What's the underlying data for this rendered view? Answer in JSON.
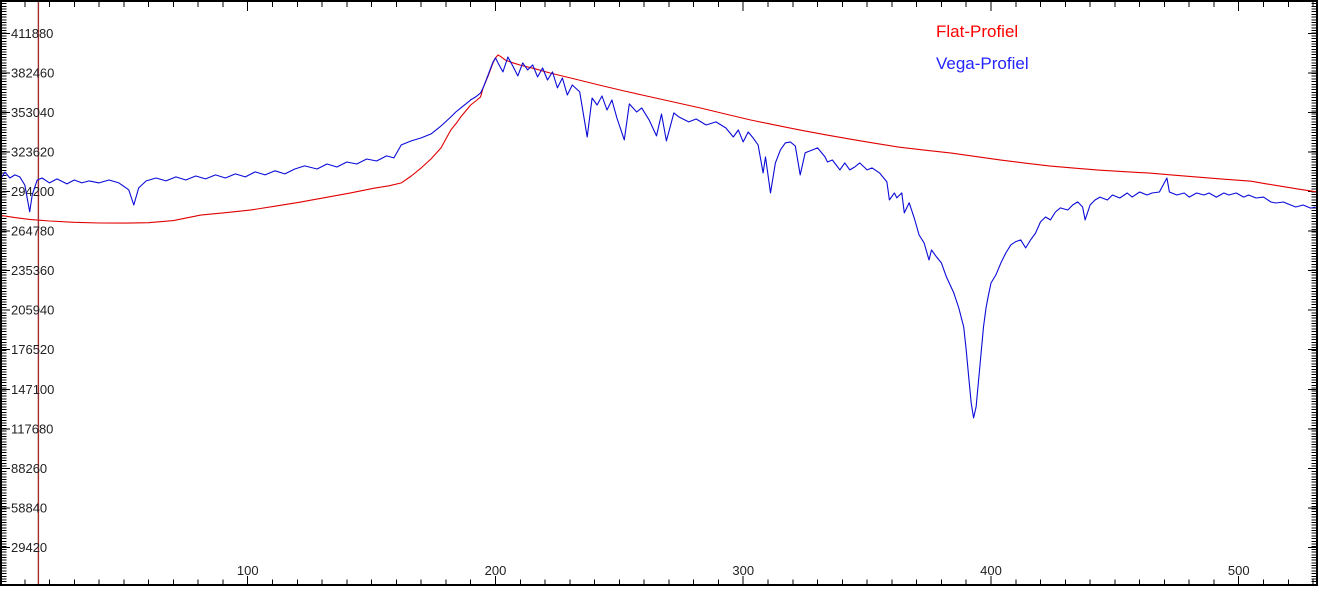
{
  "plot": {
    "background": "#ffffff",
    "border_color": "#000000",
    "tick_color": "#000000",
    "label_color": "#222222"
  },
  "legend": {
    "position": "top-right",
    "items": [
      {
        "label": "Flat-Profiel",
        "color": "#ff0000"
      },
      {
        "label": "Vega-Profiel",
        "color": "#2424ff"
      }
    ]
  },
  "cursor": {
    "x": 15.5,
    "color": "#a02c2c"
  },
  "chart_data": {
    "type": "line",
    "title": "",
    "xlabel": "",
    "ylabel": "",
    "grid": false,
    "legend_position": "top-right",
    "xlim": [
      0,
      532
    ],
    "ylim": [
      1500,
      436700
    ],
    "x_major_ticks": [
      100,
      200,
      300,
      400,
      500
    ],
    "x_minor_step": 10,
    "y_major_ticks": [
      29420,
      58840,
      88260,
      117680,
      147100,
      176520,
      205940,
      235360,
      264780,
      294200,
      323620,
      353040,
      382460,
      411880
    ],
    "y_minor_step": 2000,
    "series": [
      {
        "name": "Flat-Profiel",
        "color": "#e10000",
        "points": [
          [
            0,
            276500
          ],
          [
            6,
            274800
          ],
          [
            12,
            273500
          ],
          [
            20,
            272300
          ],
          [
            30,
            271300
          ],
          [
            40,
            270800
          ],
          [
            50,
            270700
          ],
          [
            60,
            271000
          ],
          [
            70,
            272600
          ],
          [
            81,
            276700
          ],
          [
            91,
            278500
          ],
          [
            101,
            280400
          ],
          [
            111,
            283300
          ],
          [
            121,
            286300
          ],
          [
            131,
            289600
          ],
          [
            141,
            293000
          ],
          [
            151,
            296700
          ],
          [
            157,
            298500
          ],
          [
            162,
            300600
          ],
          [
            166,
            305800
          ],
          [
            170,
            311800
          ],
          [
            174,
            318500
          ],
          [
            178,
            326700
          ],
          [
            182,
            340100
          ],
          [
            184,
            344500
          ],
          [
            186,
            349700
          ],
          [
            188,
            354200
          ],
          [
            190,
            358600
          ],
          [
            192,
            361600
          ],
          [
            194,
            364600
          ],
          [
            195,
            371300
          ],
          [
            197,
            380200
          ],
          [
            199,
            389900
          ],
          [
            200,
            393600
          ],
          [
            201,
            395800
          ],
          [
            202,
            394800
          ],
          [
            204,
            392000
          ],
          [
            207,
            390000
          ],
          [
            210,
            388300
          ],
          [
            216,
            385500
          ],
          [
            222,
            382400
          ],
          [
            232,
            377900
          ],
          [
            242,
            373400
          ],
          [
            252,
            369000
          ],
          [
            263,
            364500
          ],
          [
            273,
            360400
          ],
          [
            283,
            356300
          ],
          [
            293,
            351800
          ],
          [
            303,
            347400
          ],
          [
            313,
            343600
          ],
          [
            323,
            339900
          ],
          [
            333,
            336500
          ],
          [
            343,
            333200
          ],
          [
            353,
            330200
          ],
          [
            363,
            327200
          ],
          [
            373,
            325000
          ],
          [
            384,
            322800
          ],
          [
            394,
            320200
          ],
          [
            404,
            317600
          ],
          [
            414,
            315300
          ],
          [
            424,
            313100
          ],
          [
            434,
            311600
          ],
          [
            444,
            310100
          ],
          [
            454,
            309000
          ],
          [
            464,
            307900
          ],
          [
            474,
            306400
          ],
          [
            484,
            304900
          ],
          [
            494,
            303400
          ],
          [
            505,
            301900
          ],
          [
            511,
            300000
          ],
          [
            517,
            298200
          ],
          [
            524,
            296000
          ],
          [
            532,
            293800
          ]
        ]
      },
      {
        "name": "Vega-Profiel",
        "color": "#0b0bd8",
        "points": [
          [
            0,
            302800
          ],
          [
            2,
            308700
          ],
          [
            4,
            304300
          ],
          [
            6,
            306600
          ],
          [
            8,
            305100
          ],
          [
            10,
            299100
          ],
          [
            12,
            279100
          ],
          [
            13,
            291700
          ],
          [
            15,
            302800
          ],
          [
            17,
            304300
          ],
          [
            20,
            300600
          ],
          [
            23,
            303600
          ],
          [
            27,
            299900
          ],
          [
            30,
            302800
          ],
          [
            33,
            300600
          ],
          [
            36,
            302100
          ],
          [
            40,
            300600
          ],
          [
            44,
            302800
          ],
          [
            48,
            300600
          ],
          [
            52,
            295400
          ],
          [
            54,
            284200
          ],
          [
            56,
            296900
          ],
          [
            59,
            302100
          ],
          [
            63,
            304300
          ],
          [
            67,
            302100
          ],
          [
            71,
            305100
          ],
          [
            75,
            302800
          ],
          [
            79,
            305800
          ],
          [
            83,
            303600
          ],
          [
            87,
            306600
          ],
          [
            91,
            304300
          ],
          [
            95,
            307300
          ],
          [
            99,
            305100
          ],
          [
            103,
            308800
          ],
          [
            107,
            306600
          ],
          [
            111,
            309600
          ],
          [
            115,
            307300
          ],
          [
            119,
            311000
          ],
          [
            123,
            313300
          ],
          [
            128,
            311000
          ],
          [
            132,
            314700
          ],
          [
            136,
            312500
          ],
          [
            140,
            316200
          ],
          [
            144,
            314700
          ],
          [
            148,
            318400
          ],
          [
            152,
            316900
          ],
          [
            156,
            320700
          ],
          [
            159,
            319200
          ],
          [
            162,
            328900
          ],
          [
            166,
            331900
          ],
          [
            170,
            334100
          ],
          [
            174,
            337100
          ],
          [
            178,
            343000
          ],
          [
            182,
            349700
          ],
          [
            184,
            353400
          ],
          [
            186,
            356400
          ],
          [
            188,
            359400
          ],
          [
            190,
            362400
          ],
          [
            192,
            364600
          ],
          [
            194,
            367600
          ],
          [
            195,
            371300
          ],
          [
            197,
            381000
          ],
          [
            199,
            390600
          ],
          [
            200,
            393600
          ],
          [
            201,
            389900
          ],
          [
            203,
            383200
          ],
          [
            205,
            394300
          ],
          [
            207,
            387600
          ],
          [
            209,
            380200
          ],
          [
            211,
            389900
          ],
          [
            213,
            384700
          ],
          [
            215,
            388400
          ],
          [
            217,
            379500
          ],
          [
            219,
            386100
          ],
          [
            221,
            377200
          ],
          [
            223,
            383200
          ],
          [
            225,
            371300
          ],
          [
            227,
            378700
          ],
          [
            229,
            366000
          ],
          [
            231,
            373500
          ],
          [
            234,
            368300
          ],
          [
            237,
            334800
          ],
          [
            239,
            363800
          ],
          [
            241,
            358600
          ],
          [
            243,
            365300
          ],
          [
            245,
            354900
          ],
          [
            247,
            362300
          ],
          [
            249,
            348900
          ],
          [
            252,
            332600
          ],
          [
            254,
            359400
          ],
          [
            257,
            353400
          ],
          [
            259,
            356400
          ],
          [
            262,
            347500
          ],
          [
            265,
            335600
          ],
          [
            267,
            351900
          ],
          [
            269,
            331900
          ],
          [
            272,
            352700
          ],
          [
            274,
            349700
          ],
          [
            278,
            346000
          ],
          [
            281,
            348200
          ],
          [
            285,
            343700
          ],
          [
            289,
            346000
          ],
          [
            293,
            341500
          ],
          [
            296,
            334800
          ],
          [
            298,
            340000
          ],
          [
            300,
            331100
          ],
          [
            302,
            338500
          ],
          [
            304,
            334100
          ],
          [
            306,
            328900
          ],
          [
            308,
            308100
          ],
          [
            309,
            320000
          ],
          [
            311,
            293200
          ],
          [
            313,
            315500
          ],
          [
            315,
            325200
          ],
          [
            317,
            330400
          ],
          [
            319,
            331100
          ],
          [
            321,
            328100
          ],
          [
            323,
            306600
          ],
          [
            325,
            323000
          ],
          [
            328,
            325200
          ],
          [
            330,
            326700
          ],
          [
            333,
            320000
          ],
          [
            334,
            316200
          ],
          [
            336,
            317700
          ],
          [
            339,
            310300
          ],
          [
            341,
            315500
          ],
          [
            343,
            310300
          ],
          [
            345,
            312500
          ],
          [
            347,
            315500
          ],
          [
            350,
            310300
          ],
          [
            352,
            311800
          ],
          [
            355,
            308100
          ],
          [
            358,
            301400
          ],
          [
            359,
            288000
          ],
          [
            361,
            293200
          ],
          [
            362,
            289500
          ],
          [
            364,
            293200
          ],
          [
            365,
            278300
          ],
          [
            367,
            285800
          ],
          [
            369,
            274600
          ],
          [
            371,
            261900
          ],
          [
            373,
            256000
          ],
          [
            375,
            243300
          ],
          [
            376,
            250800
          ],
          [
            378,
            245600
          ],
          [
            380,
            241100
          ],
          [
            382,
            230700
          ],
          [
            385,
            218800
          ],
          [
            387,
            207600
          ],
          [
            389,
            193500
          ],
          [
            390,
            176400
          ],
          [
            391,
            156300
          ],
          [
            392,
            136900
          ],
          [
            393,
            125800
          ],
          [
            394,
            134000
          ],
          [
            395,
            154000
          ],
          [
            396,
            174100
          ],
          [
            397,
            193500
          ],
          [
            398,
            207600
          ],
          [
            399,
            217300
          ],
          [
            400,
            226200
          ],
          [
            402,
            232200
          ],
          [
            404,
            241100
          ],
          [
            406,
            248500
          ],
          [
            408,
            254500
          ],
          [
            410,
            257000
          ],
          [
            412,
            258200
          ],
          [
            414,
            252300
          ],
          [
            416,
            258200
          ],
          [
            418,
            263400
          ],
          [
            420,
            271600
          ],
          [
            422,
            275300
          ],
          [
            424,
            273100
          ],
          [
            426,
            279000
          ],
          [
            428,
            282000
          ],
          [
            431,
            280500
          ],
          [
            433,
            284200
          ],
          [
            435,
            286500
          ],
          [
            437,
            282700
          ],
          [
            438,
            273100
          ],
          [
            440,
            284200
          ],
          [
            442,
            287900
          ],
          [
            444,
            290100
          ],
          [
            447,
            287900
          ],
          [
            449,
            291600
          ],
          [
            452,
            289400
          ],
          [
            455,
            293100
          ],
          [
            457,
            290100
          ],
          [
            460,
            293900
          ],
          [
            463,
            291600
          ],
          [
            465,
            293100
          ],
          [
            468,
            293900
          ],
          [
            471,
            304300
          ],
          [
            472,
            293900
          ],
          [
            475,
            291600
          ],
          [
            478,
            293100
          ],
          [
            480,
            290100
          ],
          [
            483,
            293100
          ],
          [
            486,
            291600
          ],
          [
            488,
            293100
          ],
          [
            491,
            290100
          ],
          [
            494,
            293100
          ],
          [
            496,
            291600
          ],
          [
            499,
            293100
          ],
          [
            502,
            290100
          ],
          [
            504,
            291600
          ],
          [
            507,
            289400
          ],
          [
            510,
            290100
          ],
          [
            513,
            286400
          ],
          [
            515,
            285700
          ],
          [
            518,
            286400
          ],
          [
            521,
            284200
          ],
          [
            523,
            282700
          ],
          [
            526,
            284200
          ],
          [
            529,
            281900
          ],
          [
            531,
            282700
          ]
        ]
      }
    ]
  }
}
